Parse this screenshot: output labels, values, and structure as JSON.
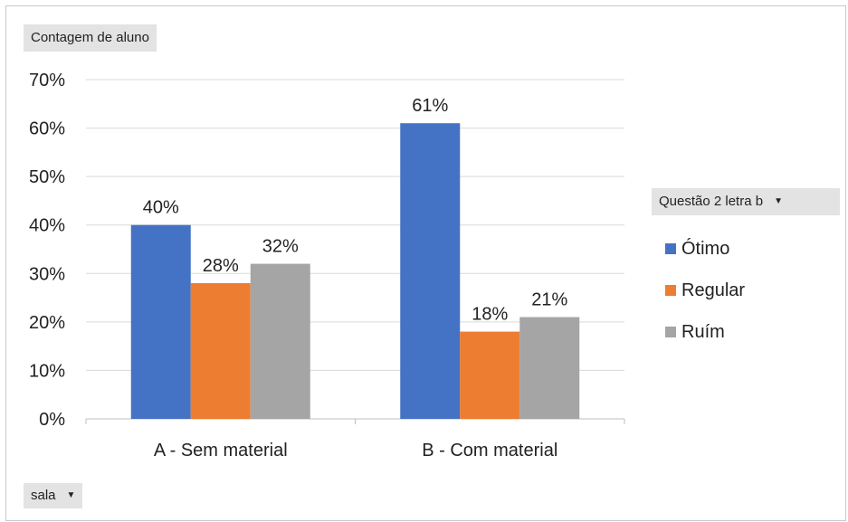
{
  "pivot_fields": {
    "values_field": "Contagem de aluno",
    "legend_field": "Questão 2 letra b",
    "axis_field": "sala",
    "dropdown_glyph": "▼"
  },
  "legend": {
    "items": [
      {
        "label": "Ótimo",
        "color": "#4472C4"
      },
      {
        "label": "Regular",
        "color": "#ED7D31"
      },
      {
        "label": "Ruím",
        "color": "#A5A5A5"
      }
    ]
  },
  "chart_data": {
    "type": "bar",
    "categories": [
      "A - Sem material",
      "B - Com material"
    ],
    "series": [
      {
        "name": "Ótimo",
        "values": [
          40,
          61
        ],
        "labels": [
          "40%",
          "61%"
        ],
        "color": "#4472C4"
      },
      {
        "name": "Regular",
        "values": [
          28,
          18
        ],
        "labels": [
          "28%",
          "18%"
        ],
        "color": "#ED7D31"
      },
      {
        "name": "Ruím",
        "values": [
          32,
          21
        ],
        "labels": [
          "32%",
          "21%"
        ],
        "color": "#A5A5A5"
      }
    ],
    "y_ticks": [
      {
        "value": 0,
        "label": "0%"
      },
      {
        "value": 10,
        "label": "10%"
      },
      {
        "value": 20,
        "label": "20%"
      },
      {
        "value": 30,
        "label": "30%"
      },
      {
        "value": 40,
        "label": "40%"
      },
      {
        "value": 50,
        "label": "50%"
      },
      {
        "value": 60,
        "label": "60%"
      },
      {
        "value": 70,
        "label": "70%"
      }
    ],
    "ylim": [
      0,
      70
    ],
    "grid": true,
    "legend_position": "right"
  }
}
